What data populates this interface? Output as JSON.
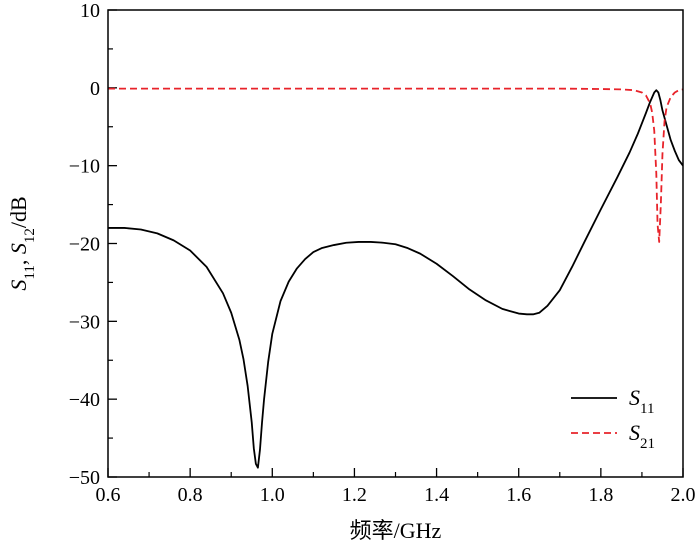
{
  "chart_data": {
    "type": "line",
    "xlabel": "频率/GHz",
    "ylabel": {
      "parts": [
        {
          "text": "S",
          "italic": true
        },
        {
          "text": "11",
          "sub": true
        },
        {
          "text": ", ",
          "italic": false
        },
        {
          "text": "S",
          "italic": true
        },
        {
          "text": "12",
          "sub": true
        },
        {
          "text": "/dB",
          "italic": false
        }
      ]
    },
    "xlim": [
      0.6,
      2.0
    ],
    "ylim": [
      -50,
      10
    ],
    "xticks": [
      "0.6",
      "0.8",
      "1.0",
      "1.2",
      "1.4",
      "1.6",
      "1.8",
      "2.0"
    ],
    "yticks": [
      "10",
      "0",
      "−10",
      "−20",
      "−30",
      "−40",
      "−50"
    ],
    "legend_position": "bottom-right",
    "series": [
      {
        "name": "S11",
        "legend_main": "S",
        "legend_sub": "11",
        "color": "#000000",
        "dash": "solid",
        "x": [
          0.6,
          0.64,
          0.68,
          0.72,
          0.76,
          0.8,
          0.84,
          0.88,
          0.9,
          0.92,
          0.93,
          0.94,
          0.95,
          0.955,
          0.96,
          0.965,
          0.97,
          0.975,
          0.98,
          0.99,
          1.0,
          1.02,
          1.04,
          1.06,
          1.08,
          1.1,
          1.12,
          1.15,
          1.18,
          1.21,
          1.24,
          1.27,
          1.3,
          1.33,
          1.36,
          1.4,
          1.44,
          1.48,
          1.52,
          1.56,
          1.6,
          1.62,
          1.635,
          1.65,
          1.67,
          1.7,
          1.73,
          1.76,
          1.8,
          1.84,
          1.87,
          1.89,
          1.91,
          1.92,
          1.93,
          1.935,
          1.94,
          1.945,
          1.95,
          1.96,
          1.97,
          1.98,
          1.99,
          2.0
        ],
        "y": [
          -18.0,
          -18.0,
          -18.2,
          -18.7,
          -19.6,
          -20.9,
          -23.0,
          -26.4,
          -28.9,
          -32.4,
          -34.9,
          -38.3,
          -43.0,
          -46.3,
          -48.3,
          -48.8,
          -46.5,
          -43.0,
          -40.0,
          -35.2,
          -31.6,
          -27.4,
          -24.9,
          -23.2,
          -22.0,
          -21.1,
          -20.6,
          -20.2,
          -19.9,
          -19.8,
          -19.8,
          -19.9,
          -20.1,
          -20.6,
          -21.3,
          -22.6,
          -24.2,
          -25.9,
          -27.3,
          -28.4,
          -29.0,
          -29.1,
          -29.1,
          -28.9,
          -28.0,
          -26.0,
          -23.0,
          -19.8,
          -15.6,
          -11.5,
          -8.3,
          -5.9,
          -3.2,
          -1.8,
          -0.6,
          -0.3,
          -0.6,
          -1.6,
          -2.9,
          -4.8,
          -6.7,
          -8.1,
          -9.3,
          -10.0
        ]
      },
      {
        "name": "S21",
        "legend_main": "S",
        "legend_sub": "21",
        "color": "#e8232a",
        "dash": "dashed",
        "x": [
          0.6,
          0.7,
          0.8,
          0.9,
          1.0,
          1.1,
          1.2,
          1.3,
          1.4,
          1.5,
          1.6,
          1.7,
          1.8,
          1.85,
          1.88,
          1.9,
          1.91,
          1.92,
          1.925,
          1.93,
          1.935,
          1.938,
          1.942,
          1.946,
          1.95,
          1.955,
          1.96,
          1.97,
          1.98,
          1.99,
          2.0
        ],
        "y": [
          -0.1,
          -0.1,
          -0.1,
          -0.1,
          -0.1,
          -0.1,
          -0.1,
          -0.1,
          -0.1,
          -0.1,
          -0.1,
          -0.1,
          -0.15,
          -0.2,
          -0.3,
          -0.6,
          -1.0,
          -2.0,
          -3.2,
          -5.5,
          -11.0,
          -17.5,
          -19.8,
          -15.0,
          -8.5,
          -4.3,
          -2.5,
          -1.2,
          -0.6,
          -0.3,
          -0.2
        ]
      }
    ]
  }
}
